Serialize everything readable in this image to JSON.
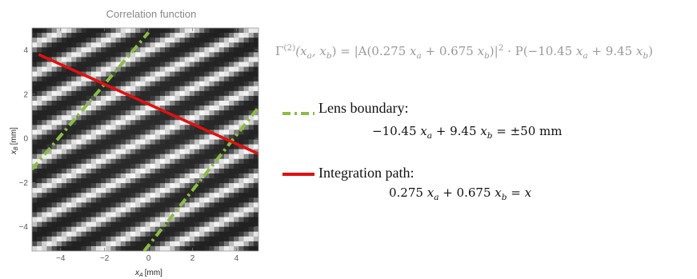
{
  "chart_data": {
    "type": "heatmap",
    "title": "Correlation function",
    "xlabel_var": "x",
    "xlabel_sub": "A",
    "xlabel_unit": "[mm]",
    "ylabel_var": "x",
    "ylabel_sub": "B",
    "ylabel_unit": "[mm]",
    "xlim": [
      -5.3,
      5.0
    ],
    "ylim": [
      -5.1,
      5.0
    ],
    "xticks": [
      -4,
      -2,
      0,
      2,
      4
    ],
    "yticks": [
      -4,
      -2,
      0,
      2,
      4
    ],
    "x_tick_labels": [
      "−4",
      "−2",
      "0",
      "2",
      "4"
    ],
    "y_tick_labels": [
      "−4",
      "−2",
      "0",
      "2",
      "4"
    ],
    "lens_boundary": {
      "line1": [
        [
          -5.3,
          -1.4
        ],
        [
          0.0,
          4.8
        ]
      ],
      "line2": [
        [
          -0.2,
          -5.1
        ],
        [
          5.0,
          1.4
        ]
      ],
      "color": "#8bbd45"
    },
    "integration_path": {
      "points": [
        [
          -5.0,
          3.8
        ],
        [
          5.0,
          -0.7
        ]
      ],
      "color": "#e11010"
    },
    "fringes": {
      "angle_deg": 25,
      "spacing": 1.21,
      "amplitude_center": [
        0.0,
        0.0
      ]
    }
  },
  "equation": {
    "Gamma": "Γ",
    "order": "(2)",
    "args": "(x",
    "lhs_tail": ") = |A(0.275 ",
    "mid": " + 0.675 ",
    "abs_close": ")|",
    "power": "2",
    "dot_P": " · P(−10.45 ",
    "mid2": " + 9.45 ",
    "close": ")",
    "a": "a",
    "b": "b",
    "comma": ", x"
  },
  "legend": {
    "lens_label": "Lens boundary:",
    "lens_eq_pre": "−10.45 ",
    "lens_eq_mid": " + 9.45 ",
    "lens_eq_post": " = ±50 mm",
    "path_label": "Integration path:",
    "path_eq_pre": "0.275 ",
    "path_eq_mid": " + 0.675 ",
    "path_eq_post": " = ",
    "var_x": "x",
    "sub_a": "a",
    "sub_b": "b",
    "lens_color": "#8bbd45",
    "path_color": "#e11010"
  }
}
